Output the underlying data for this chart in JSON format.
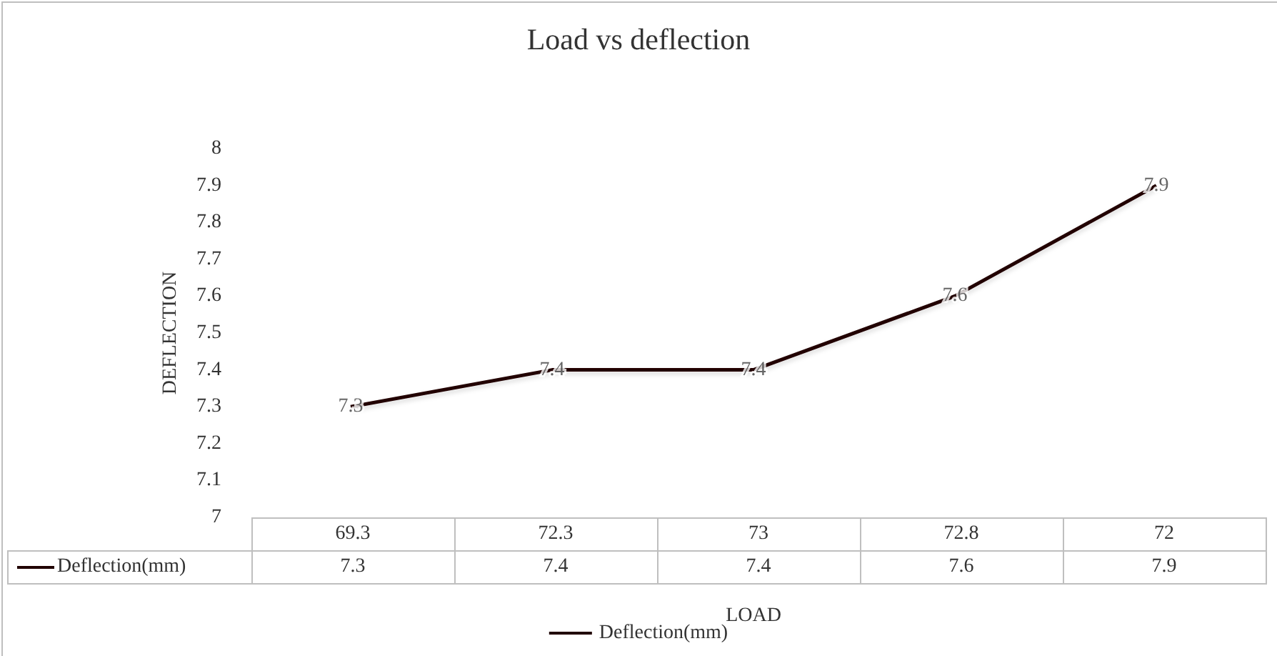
{
  "chart_data": {
    "type": "line",
    "title": "Load vs deflection",
    "xlabel": "LOAD",
    "ylabel": "DEFLECTION",
    "categories": [
      "69.3",
      "72.3",
      "73",
      "72.8",
      "72"
    ],
    "series": [
      {
        "name": "Deflection(mm)",
        "color": "#200000",
        "values": [
          7.3,
          7.4,
          7.4,
          7.6,
          7.9
        ]
      }
    ],
    "annotations": [
      {
        "text": "7.3",
        "x": "69.3",
        "y": 7.3
      },
      {
        "text": "7.4",
        "x": "72.3",
        "y": 7.4
      },
      {
        "text": "7.4",
        "x": "73",
        "y": 7.4
      },
      {
        "text": "7.6",
        "x": "72.8",
        "y": 7.6
      },
      {
        "text": "7.9",
        "x": "72",
        "y": 7.9
      }
    ],
    "ylim": [
      7,
      8
    ],
    "yticks": [
      7,
      7.1,
      7.2,
      7.3,
      7.4,
      7.5,
      7.6,
      7.7,
      7.8,
      7.9,
      8
    ],
    "data_labels": true,
    "grid": false,
    "legend": "bottom",
    "marker": "none"
  }
}
